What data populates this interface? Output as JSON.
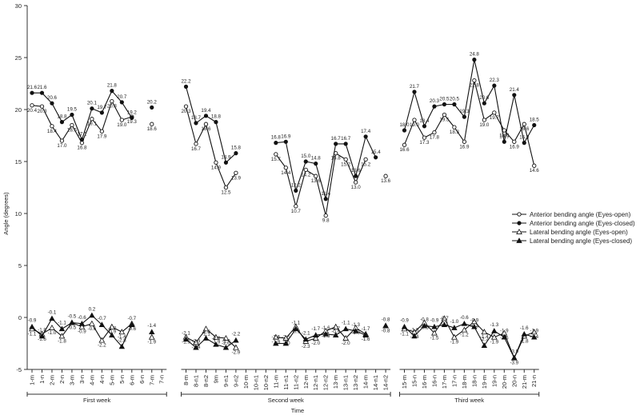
{
  "chart_data": {
    "type": "line",
    "xlabel": "Time",
    "ylabel": "Angle (degrees)",
    "ylim": [
      -5,
      30
    ],
    "yticks": [
      -5,
      0,
      5,
      10,
      15,
      20,
      25,
      30
    ],
    "grid": false,
    "legend_position": "right",
    "categories": [
      "1-m",
      "1-n",
      "2-m",
      "2-n",
      "3-m",
      "3-n",
      "4-m",
      "4-n",
      "5-m",
      "5-n",
      "6-m",
      "6-n",
      "7-m",
      "7-n",
      "8-m",
      "8-n1",
      "8-n2",
      "9m",
      "9-n1",
      "9-n2",
      "10-m",
      "10-n1",
      "10-n2",
      "11-m",
      "11-n1",
      "11-n2",
      "12-m",
      "12-n1",
      "12-n2",
      "13-m",
      "13-n1",
      "13-n2",
      "14-m",
      "14-n1",
      "14-n2",
      "15-m",
      "15-n",
      "16-m",
      "16-n",
      "17-m",
      "17-n",
      "18-m",
      "18-n",
      "19-m",
      "19-n",
      "20-m",
      "20-n",
      "21-m",
      "21-n"
    ],
    "groups": [
      {
        "label": "First week",
        "categories": [
          "1-m",
          "1-n",
          "2-m",
          "2-n",
          "3-m",
          "3-n",
          "4-m",
          "4-n",
          "5-m",
          "5-n",
          "6-m",
          "6-n",
          "7-m",
          "7-n"
        ]
      },
      {
        "label": "Second week",
        "categories": [
          "8-m",
          "8-n1",
          "8-n2",
          "9m",
          "9-n1",
          "9-n2",
          "10-m",
          "10-n1",
          "10-n2",
          "11-m",
          "11-n1",
          "11-n2",
          "12-m",
          "12-n1",
          "12-n2",
          "13-m",
          "13-n1",
          "13-n2",
          "14-m",
          "14-n1",
          "14-n2"
        ]
      },
      {
        "label": "Third week",
        "categories": [
          "15-m",
          "15-n",
          "16-m",
          "16-n",
          "17-m",
          "17-n",
          "18-m",
          "18-n",
          "19-m",
          "19-n",
          "20-m",
          "20-n",
          "21-m",
          "21-n"
        ]
      }
    ],
    "series": [
      {
        "name": "Anterior bending angle (Eyes-open)",
        "marker": "open-circle",
        "values": [
          20.4,
          20.3,
          18.4,
          17.0,
          18.5,
          16.8,
          19.1,
          17.9,
          20.8,
          19.0,
          19.3,
          null,
          18.6,
          null,
          20.3,
          16.7,
          18.6,
          14.9,
          12.5,
          13.9,
          null,
          null,
          null,
          15.7,
          14.4,
          10.7,
          14.2,
          13.6,
          9.8,
          15.8,
          15.2,
          13.0,
          15.2,
          null,
          13.6,
          16.6,
          19.0,
          17.3,
          17.8,
          19.5,
          18.3,
          16.9,
          22.8,
          19.0,
          19.7,
          18.0,
          16.9,
          18.6,
          14.6
        ]
      },
      {
        "name": "Anterior bending angle (Eyes-closed)",
        "marker": "filled-circle",
        "values": [
          21.6,
          21.6,
          20.6,
          18.8,
          19.5,
          17.1,
          20.1,
          19.7,
          21.8,
          20.7,
          19.2,
          null,
          20.2,
          null,
          22.2,
          18.7,
          19.4,
          18.8,
          14.9,
          15.8,
          null,
          null,
          null,
          16.8,
          16.9,
          12.2,
          15.0,
          14.8,
          11.4,
          16.7,
          16.7,
          13.6,
          17.4,
          15.4,
          null,
          18.0,
          21.7,
          18.4,
          20.3,
          20.5,
          20.5,
          19.3,
          24.8,
          20.6,
          22.3,
          16.9,
          21.4,
          16.8,
          18.5
        ]
      },
      {
        "name": "Lateral bending angle (Eyes-open)",
        "marker": "open-triangle",
        "values": [
          -1.1,
          -1.6,
          -1.0,
          -1.8,
          -0.5,
          -0.9,
          -0.6,
          -2.2,
          -0.9,
          -1.4,
          -0.6,
          null,
          -1.9,
          null,
          -1.9,
          -2.4,
          -1.1,
          -1.9,
          -2.0,
          -2.9,
          null,
          null,
          null,
          -1.9,
          -2.0,
          -0.9,
          -2.3,
          -2.0,
          -1.3,
          -0.9,
          -2.0,
          -1.0,
          -1.6,
          null,
          -0.8,
          -1.1,
          -1.4,
          -0.5,
          -1.5,
          -0.1,
          -1.9,
          -1.2,
          -0.4,
          -1.4,
          -1.9,
          -1.5,
          -3.9,
          -1.8,
          -1.4
        ]
      },
      {
        "name": "Lateral bending angle (Eyes-closed)",
        "marker": "filled-triangle",
        "values": [
          -0.9,
          -1.8,
          -0.1,
          -1.1,
          -0.5,
          -0.6,
          0.2,
          -0.7,
          -1.7,
          -2.8,
          -0.7,
          null,
          -1.4,
          null,
          -2.1,
          -2.9,
          -2.0,
          -2.6,
          -2.9,
          -2.2,
          null,
          null,
          null,
          -2.5,
          -2.5,
          -1.1,
          -2.1,
          -1.7,
          -1.6,
          -1.7,
          -1.1,
          -1.3,
          -1.7,
          null,
          -0.8,
          -0.9,
          -1.8,
          -0.8,
          -0.9,
          -0.7,
          -1.0,
          -0.6,
          -0.9,
          -2.7,
          -1.3,
          -1.9,
          -3.9,
          -1.6,
          -1.9
        ]
      }
    ]
  }
}
